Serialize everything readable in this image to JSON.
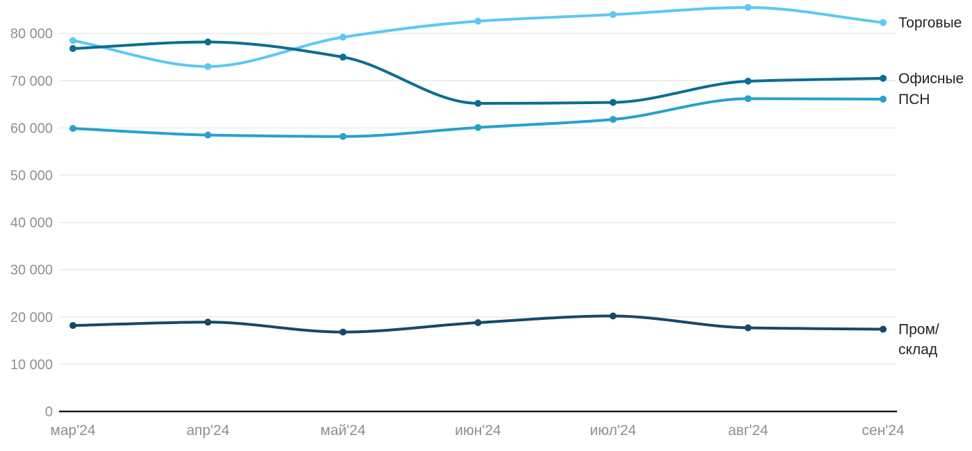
{
  "page": {
    "background": "#ffffff"
  },
  "chart_data": {
    "type": "line",
    "title": "",
    "xlabel": "",
    "ylabel": "",
    "categories": [
      "мар'24",
      "апр'24",
      "май'24",
      "июн'24",
      "июл'24",
      "авг'24",
      "сен'24"
    ],
    "series": [
      {
        "id": "torgovye",
        "name": "Торговые",
        "legend_lines": [
          "Торговые"
        ],
        "color": "#5cc8f3",
        "values": [
          78500,
          73000,
          79200,
          82600,
          84000,
          85500,
          82300
        ]
      },
      {
        "id": "ofisnye",
        "name": "Офисные",
        "legend_lines": [
          "Офисные"
        ],
        "color": "#0c6d93",
        "values": [
          76800,
          78200,
          75000,
          65200,
          65400,
          69900,
          70500
        ]
      },
      {
        "id": "psn",
        "name": "ПСН",
        "legend_lines": [
          "ПСН"
        ],
        "color": "#29a0ce",
        "values": [
          59900,
          58500,
          58200,
          60100,
          61800,
          66200,
          66100
        ]
      },
      {
        "id": "prom-sklad",
        "name": "Пром/склад",
        "legend_lines": [
          "Пром/",
          "склад"
        ],
        "color": "#16486b",
        "values": [
          18200,
          18900,
          16800,
          18800,
          20200,
          17700,
          17400
        ]
      }
    ],
    "y_axis": {
      "min": 0,
      "max": 88000,
      "tick_step": 10000,
      "tick_labels": [
        "0",
        "10 000",
        "20 000",
        "30 000",
        "40 000",
        "50 000",
        "60 000",
        "70 000",
        "80 000"
      ]
    },
    "x_axis": {
      "labels": [
        "мар'24",
        "апр'24",
        "май'24",
        "июн'24",
        "июл'24",
        "авг'24",
        "сен'24"
      ]
    },
    "grid": true,
    "legend_position": "right-of-line-ends",
    "colors": {
      "grid_line": "#e7e7e7",
      "axis_line": "#1d1d1d",
      "tick_text": "#8f8f8f",
      "legend_text": "#222222"
    }
  }
}
